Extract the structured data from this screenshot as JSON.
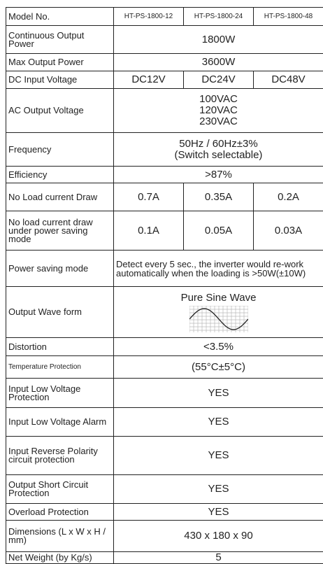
{
  "table": {
    "rows": [
      {
        "label": "Model No.",
        "cells": [
          [
            "HT-PS-1800-12"
          ],
          [
            "HT-PS-1800-24"
          ],
          [
            "HT-PS-1800-48"
          ]
        ]
      },
      {
        "label": "Continuous Output Power",
        "cells": [
          [
            "1800W"
          ]
        ]
      },
      {
        "label": "Max Output Power",
        "cells": [
          [
            "3600W"
          ]
        ]
      },
      {
        "label": "DC Input Voltage",
        "cells": [
          [
            "DC12V"
          ],
          [
            "DC24V"
          ],
          [
            "DC48V"
          ]
        ]
      },
      {
        "label": "AC Output Voltage",
        "cells": [
          [
            "100VAC",
            "120VAC",
            "230VAC"
          ]
        ]
      },
      {
        "label": "Frequency",
        "cells": [
          [
            "50Hz / 60Hz±3%",
            "(Switch selectable)"
          ]
        ]
      },
      {
        "label": "Efficiency",
        "cells": [
          [
            ">87%"
          ]
        ]
      },
      {
        "label": "No Load current Draw",
        "cells": [
          [
            "0.7A"
          ],
          [
            "0.35A"
          ],
          [
            "0.2A"
          ]
        ]
      },
      {
        "label": "No load current draw under power saving mode",
        "cells": [
          [
            "0.1A"
          ],
          [
            "0.05A"
          ],
          [
            "0.03A"
          ]
        ]
      },
      {
        "label": "Power saving mode",
        "cells": [
          [
            "Detect every 5 sec., the inverter would re-work automatically when the loading is >50W(±10W)"
          ]
        ]
      },
      {
        "label": "Output Wave form",
        "cells": [
          [
            "Pure Sine Wave"
          ]
        ]
      },
      {
        "label": "Distortion",
        "cells": [
          [
            "<3.5%"
          ]
        ]
      },
      {
        "label": "Temperature Protection",
        "cells": [
          [
            "(55°C±5°C)"
          ]
        ]
      },
      {
        "label": "Input Low Voltage Protection",
        "cells": [
          [
            "YES"
          ]
        ]
      },
      {
        "label": "Input Low Voltage Alarm",
        "cells": [
          [
            "YES"
          ]
        ]
      },
      {
        "label": "Input Reverse Polarity circuit protection",
        "cells": [
          [
            "YES"
          ]
        ]
      },
      {
        "label": "Output Short Circuit Protection",
        "cells": [
          [
            "YES"
          ]
        ]
      },
      {
        "label": "Overload Protection",
        "cells": [
          [
            "YES"
          ]
        ]
      },
      {
        "label": "Dimensions (L x W x H / mm)",
        "cells": [
          [
            "430 x 180 x 90"
          ]
        ]
      },
      {
        "label": "Net Weight (by Kg/s)",
        "cells": [
          [
            "5"
          ]
        ]
      }
    ]
  }
}
